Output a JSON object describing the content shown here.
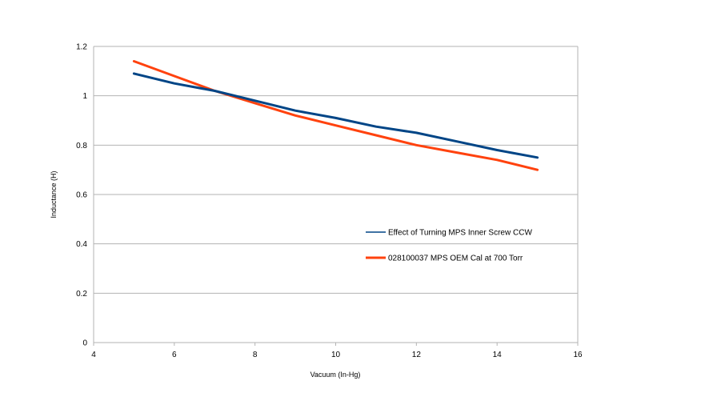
{
  "chart_data": {
    "type": "line",
    "title": "",
    "xlabel": "Vacuum (In-Hg)",
    "ylabel": "Inductance (H)",
    "xlim": [
      4,
      16
    ],
    "ylim": [
      0,
      1.2
    ],
    "x_ticks": [
      "4",
      "6",
      "8",
      "10",
      "12",
      "14",
      "16"
    ],
    "y_ticks": [
      "0",
      "0.2",
      "0.4",
      "0.6",
      "0.8",
      "1",
      "1.2"
    ],
    "grid": "horizontal",
    "legend_position": "right",
    "series": [
      {
        "name": "Effect of Turning MPS Inner Screw CCW",
        "color": "#004586",
        "x": [
          5,
          6,
          7,
          8,
          9,
          10,
          11,
          12,
          13,
          14,
          15
        ],
        "y": [
          1.09,
          1.05,
          1.02,
          0.98,
          0.94,
          0.91,
          0.875,
          0.85,
          0.815,
          0.78,
          0.75
        ]
      },
      {
        "name": "028100037 MPS OEM Cal at 700 Torr",
        "color": "#ff420e",
        "x": [
          5,
          6,
          7,
          8,
          9,
          10,
          11,
          12,
          13,
          14,
          15
        ],
        "y": [
          1.14,
          1.08,
          1.02,
          0.97,
          0.92,
          0.88,
          0.84,
          0.8,
          0.77,
          0.74,
          0.7
        ]
      }
    ]
  }
}
